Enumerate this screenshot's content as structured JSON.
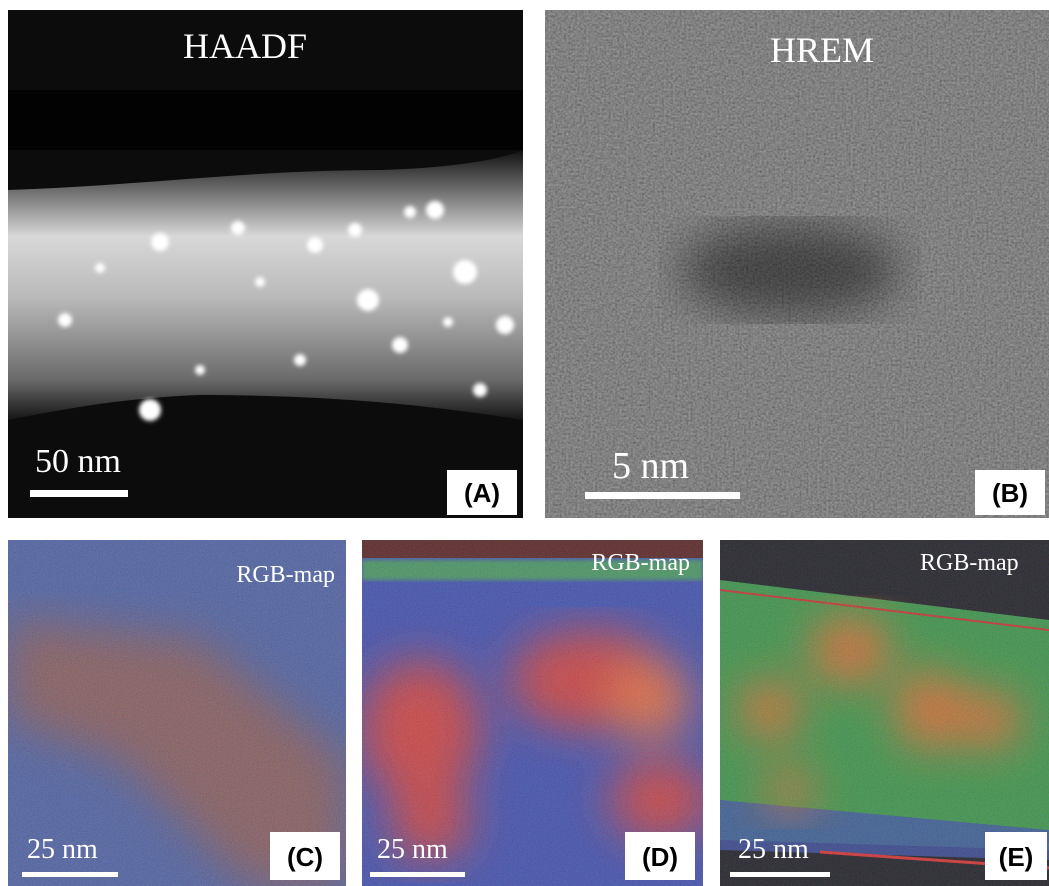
{
  "panels": [
    {
      "title": "HAADF",
      "scale_bar": "50 nm",
      "label": "(A)"
    },
    {
      "title": "HREM",
      "scale_bar": "5 nm",
      "label": "(B)"
    },
    {
      "title": "RGB-map",
      "scale_bar": "25 nm",
      "label": "(C)"
    },
    {
      "title": "RGB-map",
      "scale_bar": "25 nm",
      "label": "(D)"
    },
    {
      "title": "RGB-map",
      "scale_bar": "25 nm",
      "label": "(E)"
    }
  ]
}
